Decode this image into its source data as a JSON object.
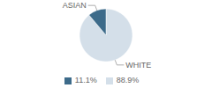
{
  "chart_data": {
    "type": "pie",
    "categories": [
      "WHITE",
      "ASIAN"
    ],
    "values": [
      88.9,
      11.1
    ],
    "value_labels": [
      "88.9%",
      "11.1%"
    ],
    "colors": [
      "#d4dfe9",
      "#3d6b8a"
    ],
    "legend": "bottom"
  }
}
